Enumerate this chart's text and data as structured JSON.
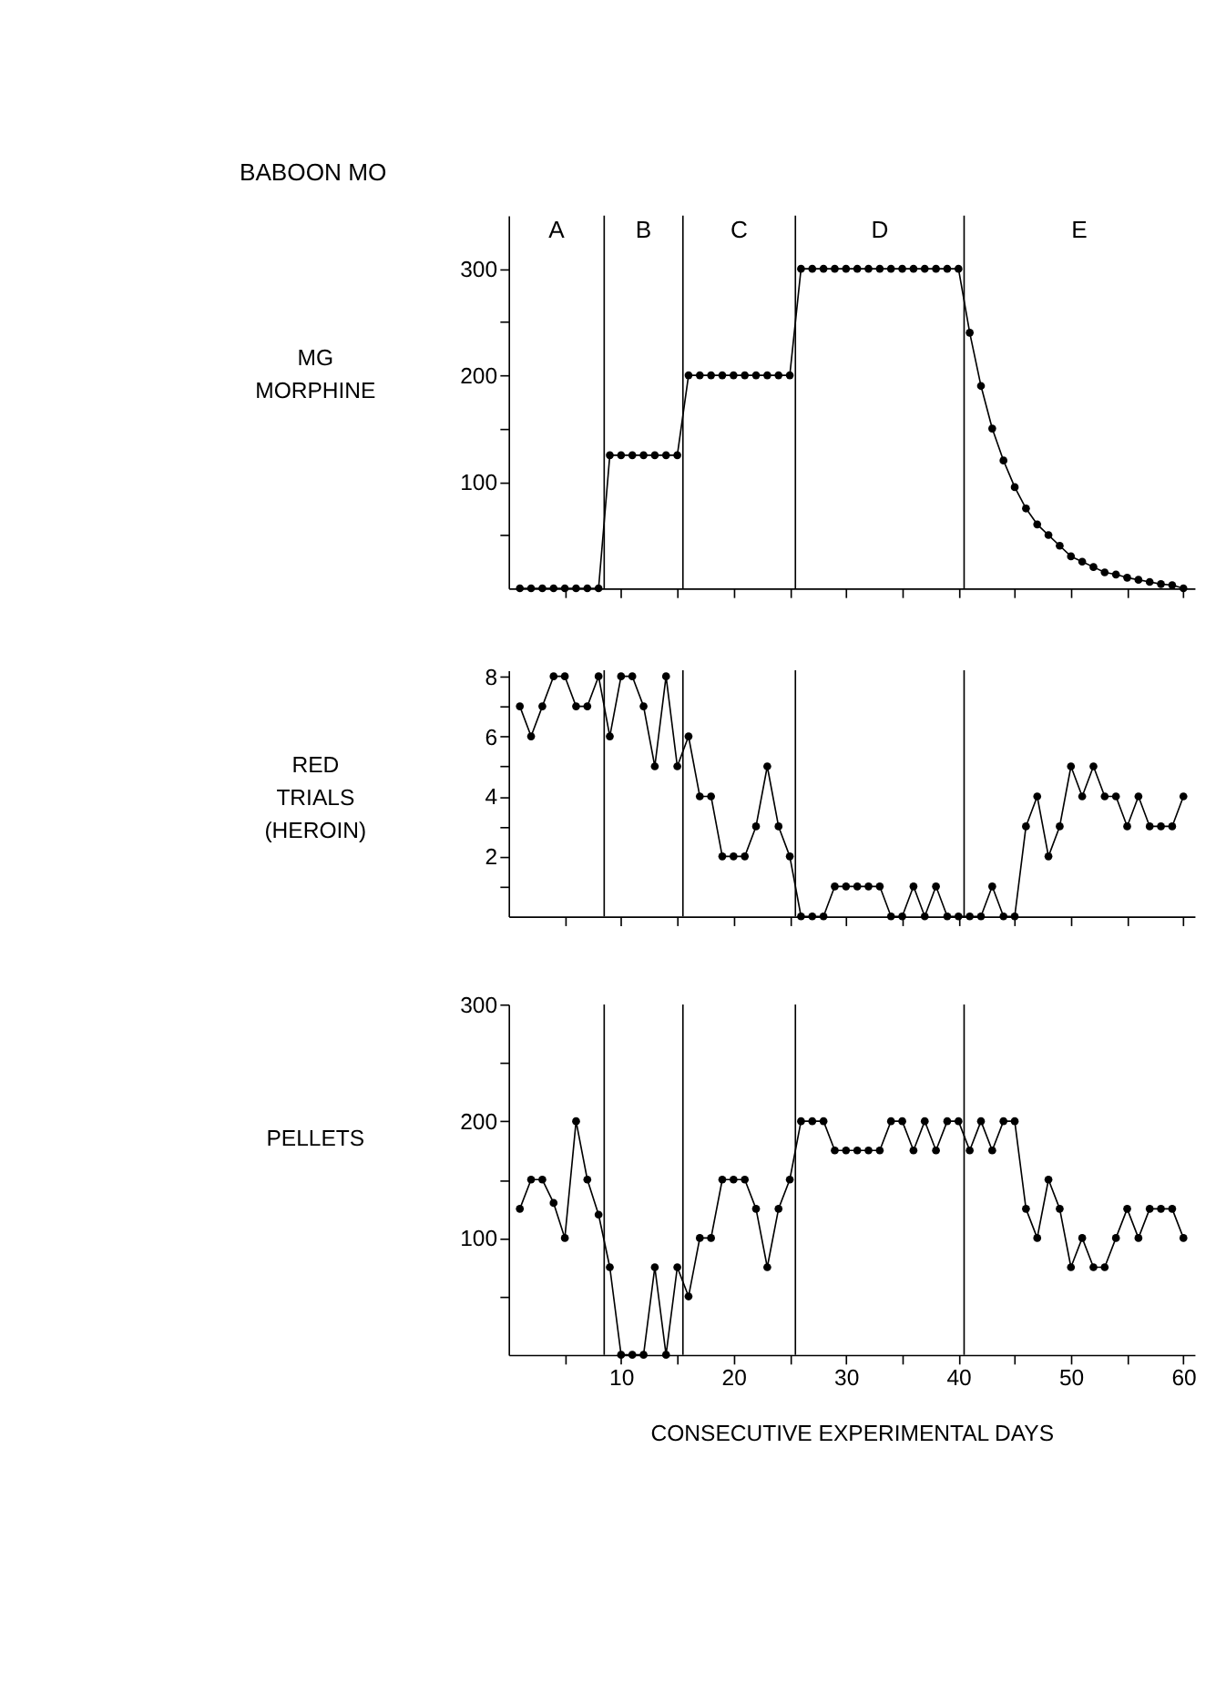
{
  "chart_data": [
    {
      "type": "line",
      "title": "BABOON MO",
      "ylabel": "MG\nMORPHINE",
      "marker": "circle",
      "line_style": "solid",
      "tick_labels": "y",
      "x": [
        1,
        2,
        3,
        4,
        5,
        6,
        7,
        8,
        9,
        10,
        11,
        12,
        13,
        14,
        15,
        16,
        17,
        18,
        19,
        20,
        21,
        22,
        23,
        24,
        25,
        26,
        27,
        28,
        29,
        30,
        31,
        32,
        33,
        34,
        35,
        36,
        37,
        38,
        39,
        40,
        41,
        42,
        43,
        44,
        45,
        46,
        47,
        48,
        49,
        50,
        51,
        52,
        53,
        54,
        55,
        56,
        57,
        58,
        59,
        60
      ],
      "series": [
        {
          "color": "#000000",
          "values": [
            0,
            0,
            0,
            0,
            0,
            0,
            0,
            0,
            125,
            125,
            125,
            125,
            125,
            125,
            125,
            200,
            200,
            200,
            200,
            200,
            200,
            200,
            200,
            200,
            200,
            300,
            300,
            300,
            300,
            300,
            300,
            300,
            300,
            300,
            300,
            300,
            300,
            300,
            300,
            300,
            240,
            190,
            150,
            120,
            95,
            75,
            60,
            50,
            40,
            30,
            25,
            20,
            15,
            13,
            10,
            8,
            6,
            4,
            3,
            0
          ]
        }
      ],
      "xlim": [
        0,
        61
      ],
      "xticks": [
        {
          "value": 5,
          "label": null
        },
        {
          "value": 10,
          "label": null
        },
        {
          "value": 15,
          "label": null
        },
        {
          "value": 20,
          "label": null
        },
        {
          "value": 25,
          "label": null
        },
        {
          "value": 30,
          "label": null
        },
        {
          "value": 35,
          "label": null
        },
        {
          "value": 40,
          "label": null
        },
        {
          "value": 45,
          "label": null
        },
        {
          "value": 50,
          "label": null
        },
        {
          "value": 55,
          "label": null
        },
        {
          "value": 60,
          "label": null
        }
      ],
      "ylim": [
        0,
        350
      ],
      "yticks": [
        {
          "value": 50,
          "label": null
        },
        100,
        {
          "value": 150,
          "label": null
        },
        200,
        {
          "value": 250,
          "label": null
        },
        300
      ],
      "ref_lines": [
        {
          "axis": "x",
          "value": 8.5
        },
        {
          "axis": "x",
          "value": 15.5
        },
        {
          "axis": "x",
          "value": 25.5
        },
        {
          "axis": "x",
          "value": 40.5
        }
      ],
      "annotations": [
        "A",
        "B",
        "C",
        "D",
        "E"
      ]
    },
    {
      "type": "line",
      "ylabel": "RED\nTRIALS\n(HEROIN)",
      "marker": "circle",
      "line_style": "solid",
      "tick_labels": "y",
      "x": [
        1,
        2,
        3,
        4,
        5,
        6,
        7,
        8,
        9,
        10,
        11,
        12,
        13,
        14,
        15,
        16,
        17,
        18,
        19,
        20,
        21,
        22,
        23,
        24,
        25,
        26,
        27,
        28,
        29,
        30,
        31,
        32,
        33,
        34,
        35,
        36,
        37,
        38,
        39,
        40,
        41,
        42,
        43,
        44,
        45,
        46,
        47,
        48,
        49,
        50,
        51,
        52,
        53,
        54,
        55,
        56,
        57,
        58,
        59,
        60
      ],
      "series": [
        {
          "color": "#000000",
          "values": [
            7,
            6,
            7,
            8,
            8,
            7,
            7,
            8,
            6,
            8,
            8,
            7,
            5,
            8,
            5,
            6,
            4,
            4,
            2,
            2,
            2,
            3,
            5,
            3,
            2,
            0,
            0,
            0,
            1,
            1,
            1,
            1,
            1,
            0,
            0,
            1,
            0,
            1,
            0,
            0,
            0,
            0,
            1,
            0,
            0,
            3,
            4,
            2,
            3,
            5,
            4,
            5,
            4,
            4,
            3,
            4,
            3,
            3,
            3,
            4
          ]
        }
      ],
      "xlim": [
        0,
        61
      ],
      "xticks": [
        {
          "value": 5,
          "label": null
        },
        {
          "value": 10,
          "label": null
        },
        {
          "value": 15,
          "label": null
        },
        {
          "value": 20,
          "label": null
        },
        {
          "value": 25,
          "label": null
        },
        {
          "value": 30,
          "label": null
        },
        {
          "value": 35,
          "label": null
        },
        {
          "value": 40,
          "label": null
        },
        {
          "value": 45,
          "label": null
        },
        {
          "value": 50,
          "label": null
        },
        {
          "value": 55,
          "label": null
        },
        {
          "value": 60,
          "label": null
        }
      ],
      "ylim": [
        0,
        8.2
      ],
      "yticks": [
        {
          "value": 1,
          "label": null
        },
        2,
        {
          "value": 3,
          "label": null
        },
        4,
        {
          "value": 5,
          "label": null
        },
        6,
        {
          "value": 7,
          "label": null
        },
        8
      ],
      "ref_lines": [
        {
          "axis": "x",
          "value": 8.5
        },
        {
          "axis": "x",
          "value": 15.5
        },
        {
          "axis": "x",
          "value": 25.5
        },
        {
          "axis": "x",
          "value": 40.5
        }
      ]
    },
    {
      "type": "line",
      "ylabel": "PELLETS",
      "xlabel": "CONSECUTIVE EXPERIMENTAL DAYS",
      "marker": "circle",
      "line_style": "solid",
      "x": [
        1,
        2,
        3,
        4,
        5,
        6,
        7,
        8,
        9,
        10,
        11,
        12,
        13,
        14,
        15,
        16,
        17,
        18,
        19,
        20,
        21,
        22,
        23,
        24,
        25,
        26,
        27,
        28,
        29,
        30,
        31,
        32,
        33,
        34,
        35,
        36,
        37,
        38,
        39,
        40,
        41,
        42,
        43,
        44,
        45,
        46,
        47,
        48,
        49,
        50,
        51,
        52,
        53,
        54,
        55,
        56,
        57,
        58,
        59,
        60
      ],
      "series": [
        {
          "color": "#000000",
          "values": [
            125,
            150,
            150,
            130,
            100,
            200,
            150,
            120,
            75,
            0,
            0,
            0,
            75,
            0,
            75,
            50,
            100,
            100,
            150,
            150,
            150,
            125,
            75,
            125,
            150,
            200,
            200,
            200,
            175,
            175,
            175,
            175,
            175,
            200,
            200,
            175,
            200,
            175,
            200,
            200,
            175,
            200,
            175,
            200,
            200,
            125,
            100,
            150,
            125,
            75,
            100,
            75,
            75,
            100,
            125,
            100,
            125,
            125,
            125,
            100
          ]
        }
      ],
      "xlim": [
        0,
        61
      ],
      "xticks": [
        {
          "value": 5,
          "label": null
        },
        10,
        {
          "value": 15,
          "label": null
        },
        20,
        {
          "value": 25,
          "label": null
        },
        30,
        {
          "value": 35,
          "label": null
        },
        40,
        {
          "value": 45,
          "label": null
        },
        50,
        {
          "value": 55,
          "label": null
        },
        60
      ],
      "ylim": [
        0,
        300
      ],
      "yticks": [
        {
          "value": 50,
          "label": null
        },
        100,
        {
          "value": 150,
          "label": null
        },
        200,
        {
          "value": 250,
          "label": null
        },
        300
      ],
      "ref_lines": [
        {
          "axis": "x",
          "value": 8.5
        },
        {
          "axis": "x",
          "value": 15.5
        },
        {
          "axis": "x",
          "value": 25.5
        },
        {
          "axis": "x",
          "value": 40.5
        }
      ]
    }
  ]
}
